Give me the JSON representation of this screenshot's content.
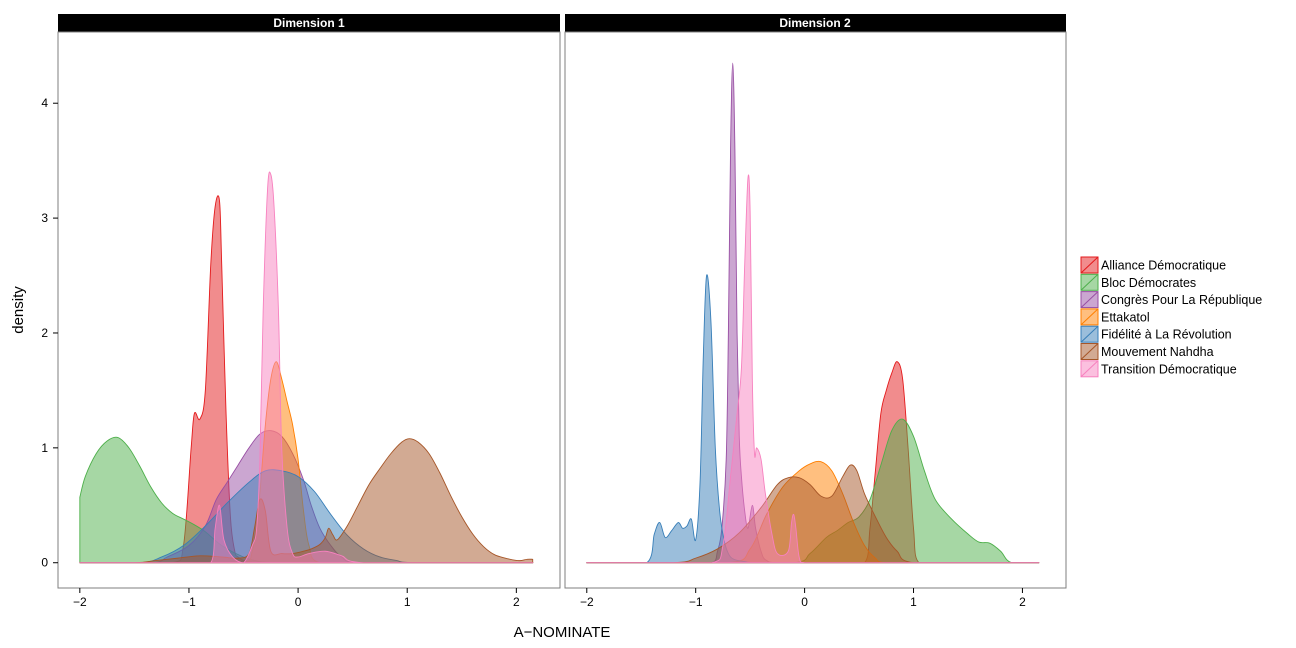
{
  "chart_data": {
    "type": "area",
    "subtype": "density",
    "xlabel": "A−NOMINATE",
    "ylabel": "density",
    "xlim": [
      -2.2,
      2.4
    ],
    "ylim": [
      -0.22,
      4.62
    ],
    "x_ticks": [
      -2,
      -1,
      0,
      1,
      2
    ],
    "x_tick_labels": [
      "−2",
      "−1",
      "0",
      "1",
      "2"
    ],
    "y_ticks": [
      0,
      1,
      2,
      3,
      4
    ],
    "y_tick_labels": [
      "0",
      "1",
      "2",
      "3",
      "4"
    ],
    "grid": false,
    "legend_position": "right",
    "fill_opacity": 0.5,
    "series": [
      {
        "name": "Alliance Démocratique",
        "color": "#E41A1C"
      },
      {
        "name": "Bloc Démocrates",
        "color": "#4DAF4A"
      },
      {
        "name": "Congrès Pour La République",
        "color": "#984EA3"
      },
      {
        "name": "Ettakatol",
        "color": "#FF7F00"
      },
      {
        "name": "Fidélité à La Révolution",
        "color": "#377EB8"
      },
      {
        "name": "Mouvement Nahdha",
        "color": "#A65628"
      },
      {
        "name": "Transition Démocratique",
        "color": "#F781BF"
      }
    ],
    "panels": [
      {
        "title": "Dimension 1",
        "densities": [
          {
            "series": 0,
            "x": [
              -2,
              -1.15,
              -1.05,
              -0.98,
              -0.95,
              -0.9,
              -0.85,
              -0.8,
              -0.76,
              -0.72,
              -0.7,
              -0.66,
              -0.62,
              -0.58,
              -0.55,
              -0.5,
              -0.4,
              -0.2,
              2.15
            ],
            "y": [
              0,
              0,
              0.15,
              1.0,
              1.3,
              1.25,
              1.5,
              2.6,
              3.1,
              3.15,
              2.6,
              1.3,
              0.4,
              0.1,
              0.05,
              0.02,
              0,
              0,
              0
            ]
          },
          {
            "series": 1,
            "x": [
              -2,
              -1.95,
              -1.85,
              -1.75,
              -1.65,
              -1.55,
              -1.45,
              -1.35,
              -1.25,
              -1.15,
              -1.05,
              -0.95,
              -0.85,
              -0.7,
              -0.5,
              -0.35,
              -0.2,
              0,
              2.15
            ],
            "y": [
              0.57,
              0.75,
              0.95,
              1.06,
              1.09,
              1.0,
              0.84,
              0.66,
              0.52,
              0.43,
              0.38,
              0.33,
              0.27,
              0.15,
              0.05,
              0.01,
              0,
              0,
              0
            ]
          },
          {
            "series": 2,
            "x": [
              -2,
              -1.35,
              -1.2,
              -1.0,
              -0.85,
              -0.75,
              -0.65,
              -0.55,
              -0.45,
              -0.35,
              -0.25,
              -0.15,
              -0.05,
              0.05,
              0.12,
              0.2,
              0.3,
              0.4,
              0.55,
              2.15
            ],
            "y": [
              0,
              0,
              0.05,
              0.15,
              0.32,
              0.55,
              0.7,
              0.85,
              1.0,
              1.12,
              1.15,
              1.1,
              0.95,
              0.72,
              0.5,
              0.3,
              0.15,
              0.05,
              0,
              0
            ]
          },
          {
            "series": 3,
            "x": [
              -2,
              -0.5,
              -0.42,
              -0.36,
              -0.3,
              -0.25,
              -0.2,
              -0.15,
              -0.1,
              -0.05,
              0,
              0.05,
              0.1,
              0.2,
              2.15
            ],
            "y": [
              0,
              0,
              0.1,
              0.5,
              1.2,
              1.6,
              1.75,
              1.6,
              1.4,
              1.2,
              0.9,
              0.45,
              0.15,
              0,
              0
            ]
          },
          {
            "series": 4,
            "x": [
              -2,
              -1.45,
              -1.25,
              -1.05,
              -0.85,
              -0.65,
              -0.45,
              -0.3,
              -0.15,
              0,
              0.15,
              0.3,
              0.45,
              0.6,
              0.75,
              0.9,
              1.05,
              2.15
            ],
            "y": [
              0,
              0,
              0.05,
              0.15,
              0.32,
              0.52,
              0.7,
              0.8,
              0.8,
              0.75,
              0.62,
              0.42,
              0.24,
              0.12,
              0.05,
              0.02,
              0,
              0
            ]
          },
          {
            "series": 5,
            "x": [
              -2,
              -1.5,
              -1.3,
              -1.1,
              -0.9,
              -0.7,
              -0.55,
              -0.45,
              -0.4,
              -0.35,
              -0.3,
              -0.25,
              -0.15,
              -0.05,
              0.05,
              0.12,
              0.2,
              0.25,
              0.28,
              0.32,
              0.36,
              0.45,
              0.55,
              0.65,
              0.75,
              0.85,
              0.95,
              1.02,
              1.1,
              1.2,
              1.3,
              1.4,
              1.5,
              1.6,
              1.7,
              1.8,
              1.9,
              2.0,
              2.05,
              2.1,
              2.15
            ],
            "y": [
              0,
              0,
              0.02,
              0.04,
              0.06,
              0.05,
              0.04,
              0.08,
              0.3,
              0.55,
              0.45,
              0.1,
              0.08,
              0.08,
              0.1,
              0.12,
              0.16,
              0.22,
              0.3,
              0.24,
              0.2,
              0.32,
              0.5,
              0.68,
              0.82,
              0.95,
              1.05,
              1.08,
              1.05,
              0.95,
              0.78,
              0.58,
              0.4,
              0.25,
              0.14,
              0.07,
              0.04,
              0.02,
              0.02,
              0.03,
              0.03
            ]
          },
          {
            "series": 6,
            "x": [
              -2,
              -0.8,
              -0.76,
              -0.72,
              -0.68,
              -0.6,
              -0.5,
              -0.42,
              -0.38,
              -0.35,
              -0.32,
              -0.28,
              -0.25,
              -0.22,
              -0.18,
              -0.15,
              -0.1,
              -0.05,
              0,
              0.1,
              0.25,
              0.4,
              0.6,
              2.15
            ],
            "y": [
              0,
              0,
              0.3,
              0.5,
              0.2,
              0.05,
              0,
              0.15,
              0.3,
              0.9,
              2.2,
              3.25,
              3.38,
              3.1,
              2.2,
              1.0,
              0.3,
              0.08,
              0.05,
              0.08,
              0.1,
              0.06,
              0,
              0
            ]
          }
        ]
      },
      {
        "title": "Dimension 2",
        "densities": [
          {
            "series": 0,
            "x": [
              -2,
              0.55,
              0.6,
              0.65,
              0.7,
              0.75,
              0.8,
              0.85,
              0.9,
              0.95,
              1.0,
              1.05,
              2.15
            ],
            "y": [
              0,
              0,
              0.3,
              0.8,
              1.3,
              1.5,
              1.65,
              1.75,
              1.6,
              1.0,
              0.3,
              0,
              0
            ]
          },
          {
            "series": 1,
            "x": [
              -2,
              -0.1,
              0.05,
              0.2,
              0.3,
              0.4,
              0.5,
              0.6,
              0.7,
              0.8,
              0.9,
              1.0,
              1.1,
              1.2,
              1.35,
              1.5,
              1.6,
              1.7,
              1.8,
              1.9,
              2.15
            ],
            "y": [
              0,
              0,
              0.08,
              0.22,
              0.28,
              0.35,
              0.4,
              0.55,
              0.85,
              1.15,
              1.25,
              1.1,
              0.8,
              0.55,
              0.38,
              0.25,
              0.18,
              0.17,
              0.1,
              0,
              0
            ]
          },
          {
            "series": 2,
            "x": [
              -2,
              -0.85,
              -0.8,
              -0.76,
              -0.72,
              -0.7,
              -0.68,
              -0.66,
              -0.64,
              -0.62,
              -0.6,
              -0.58,
              -0.55,
              -0.52,
              -0.48,
              -0.45,
              -0.4,
              -0.35,
              -0.2,
              2.15
            ],
            "y": [
              0,
              0,
              0.1,
              0.3,
              0.9,
              2.0,
              3.6,
              4.35,
              3.6,
              2.0,
              1.1,
              0.75,
              0.45,
              0.3,
              0.5,
              0.3,
              0.1,
              0.02,
              0,
              0
            ]
          },
          {
            "series": 3,
            "x": [
              -2,
              -0.7,
              -0.5,
              -0.35,
              -0.2,
              -0.05,
              0.05,
              0.15,
              0.25,
              0.35,
              0.45,
              0.55,
              0.65,
              0.75,
              2.15
            ],
            "y": [
              0,
              0,
              0.12,
              0.42,
              0.66,
              0.8,
              0.86,
              0.88,
              0.8,
              0.6,
              0.35,
              0.15,
              0.04,
              0,
              0
            ]
          },
          {
            "series": 4,
            "x": [
              -2,
              -1.45,
              -1.38,
              -1.33,
              -1.28,
              -1.22,
              -1.16,
              -1.12,
              -1.08,
              -1.04,
              -1.0,
              -0.96,
              -0.93,
              -0.9,
              -0.86,
              -0.82,
              -0.78,
              -0.74,
              -0.7,
              -0.65,
              -0.55,
              -0.45,
              2.15
            ],
            "y": [
              0,
              0,
              0.25,
              0.35,
              0.22,
              0.28,
              0.35,
              0.3,
              0.32,
              0.38,
              0.2,
              0.7,
              1.8,
              2.5,
              2.1,
              1.0,
              0.45,
              0.2,
              0.08,
              0.03,
              0.01,
              0,
              0
            ]
          },
          {
            "series": 5,
            "x": [
              -2,
              -1.2,
              -1.0,
              -0.8,
              -0.6,
              -0.4,
              -0.25,
              -0.15,
              -0.05,
              0.05,
              0.15,
              0.25,
              0.35,
              0.42,
              0.48,
              0.55,
              0.65,
              0.75,
              0.85,
              1.0,
              2.15
            ],
            "y": [
              0,
              0,
              0.04,
              0.12,
              0.26,
              0.48,
              0.68,
              0.74,
              0.74,
              0.68,
              0.58,
              0.58,
              0.75,
              0.85,
              0.8,
              0.6,
              0.4,
              0.22,
              0.1,
              0,
              0
            ]
          },
          {
            "series": 6,
            "x": [
              -2,
              -0.85,
              -0.75,
              -0.68,
              -0.62,
              -0.58,
              -0.55,
              -0.52,
              -0.5,
              -0.48,
              -0.46,
              -0.44,
              -0.4,
              -0.36,
              -0.3,
              -0.25,
              -0.15,
              -0.12,
              -0.1,
              -0.08,
              -0.05,
              0,
              2.15
            ],
            "y": [
              0,
              0,
              0.15,
              0.75,
              1.3,
              1.7,
              2.6,
              3.35,
              3.05,
              1.6,
              0.95,
              1.0,
              0.9,
              0.6,
              0.25,
              0.08,
              0.1,
              0.35,
              0.42,
              0.3,
              0.05,
              0,
              0
            ]
          }
        ]
      }
    ]
  }
}
